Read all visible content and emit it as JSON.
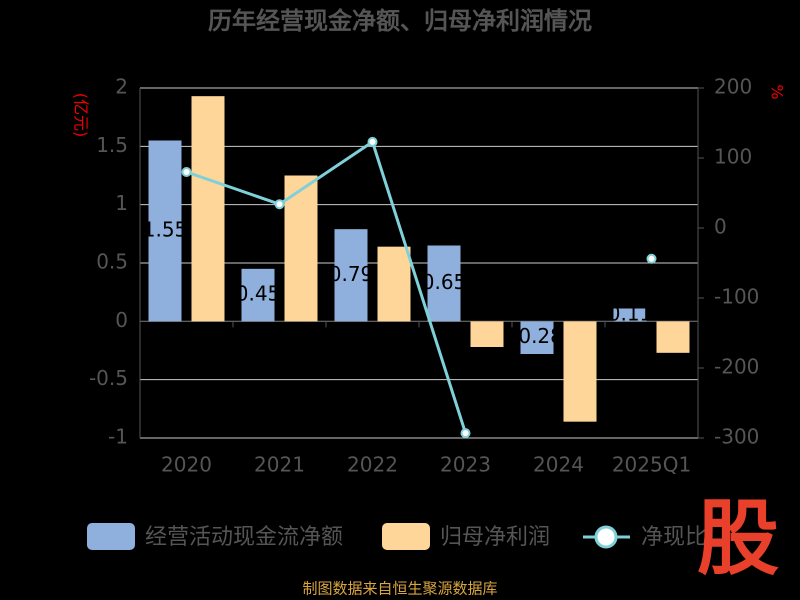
{
  "chart_data": {
    "type": "bar-line",
    "title": "历年经营现金净额、归母净利润情况",
    "y_label": "(亿元)",
    "y2_label": "%",
    "categories": [
      "2020",
      "2021",
      "2022",
      "2023",
      "2024",
      "2025Q1"
    ],
    "series": [
      {
        "name": "经营活动现金流净额",
        "type": "bar",
        "color": "#8fb0dc",
        "values": [
          1.55,
          0.45,
          0.79,
          0.65,
          -0.28,
          0.11
        ]
      },
      {
        "name": "归母净利润",
        "type": "bar",
        "color": "#ffd699",
        "values": [
          1.93,
          1.25,
          0.64,
          -0.22,
          -0.86,
          -0.27
        ]
      },
      {
        "name": "净现比",
        "type": "line",
        "axis": "y2",
        "color": "#7fd0d8",
        "values": [
          80,
          34,
          123,
          -293,
          null,
          -44
        ]
      }
    ],
    "ylim": [
      -1,
      2
    ],
    "yticks": [
      -1,
      -0.5,
      0,
      0.5,
      1,
      1.5,
      2
    ],
    "y2lim": [
      -300,
      200
    ],
    "y2ticks": [
      -300,
      -200,
      -100,
      0,
      100,
      200
    ],
    "grid": true,
    "source": "制图数据来自恒生聚源数据库",
    "logo": "股"
  }
}
